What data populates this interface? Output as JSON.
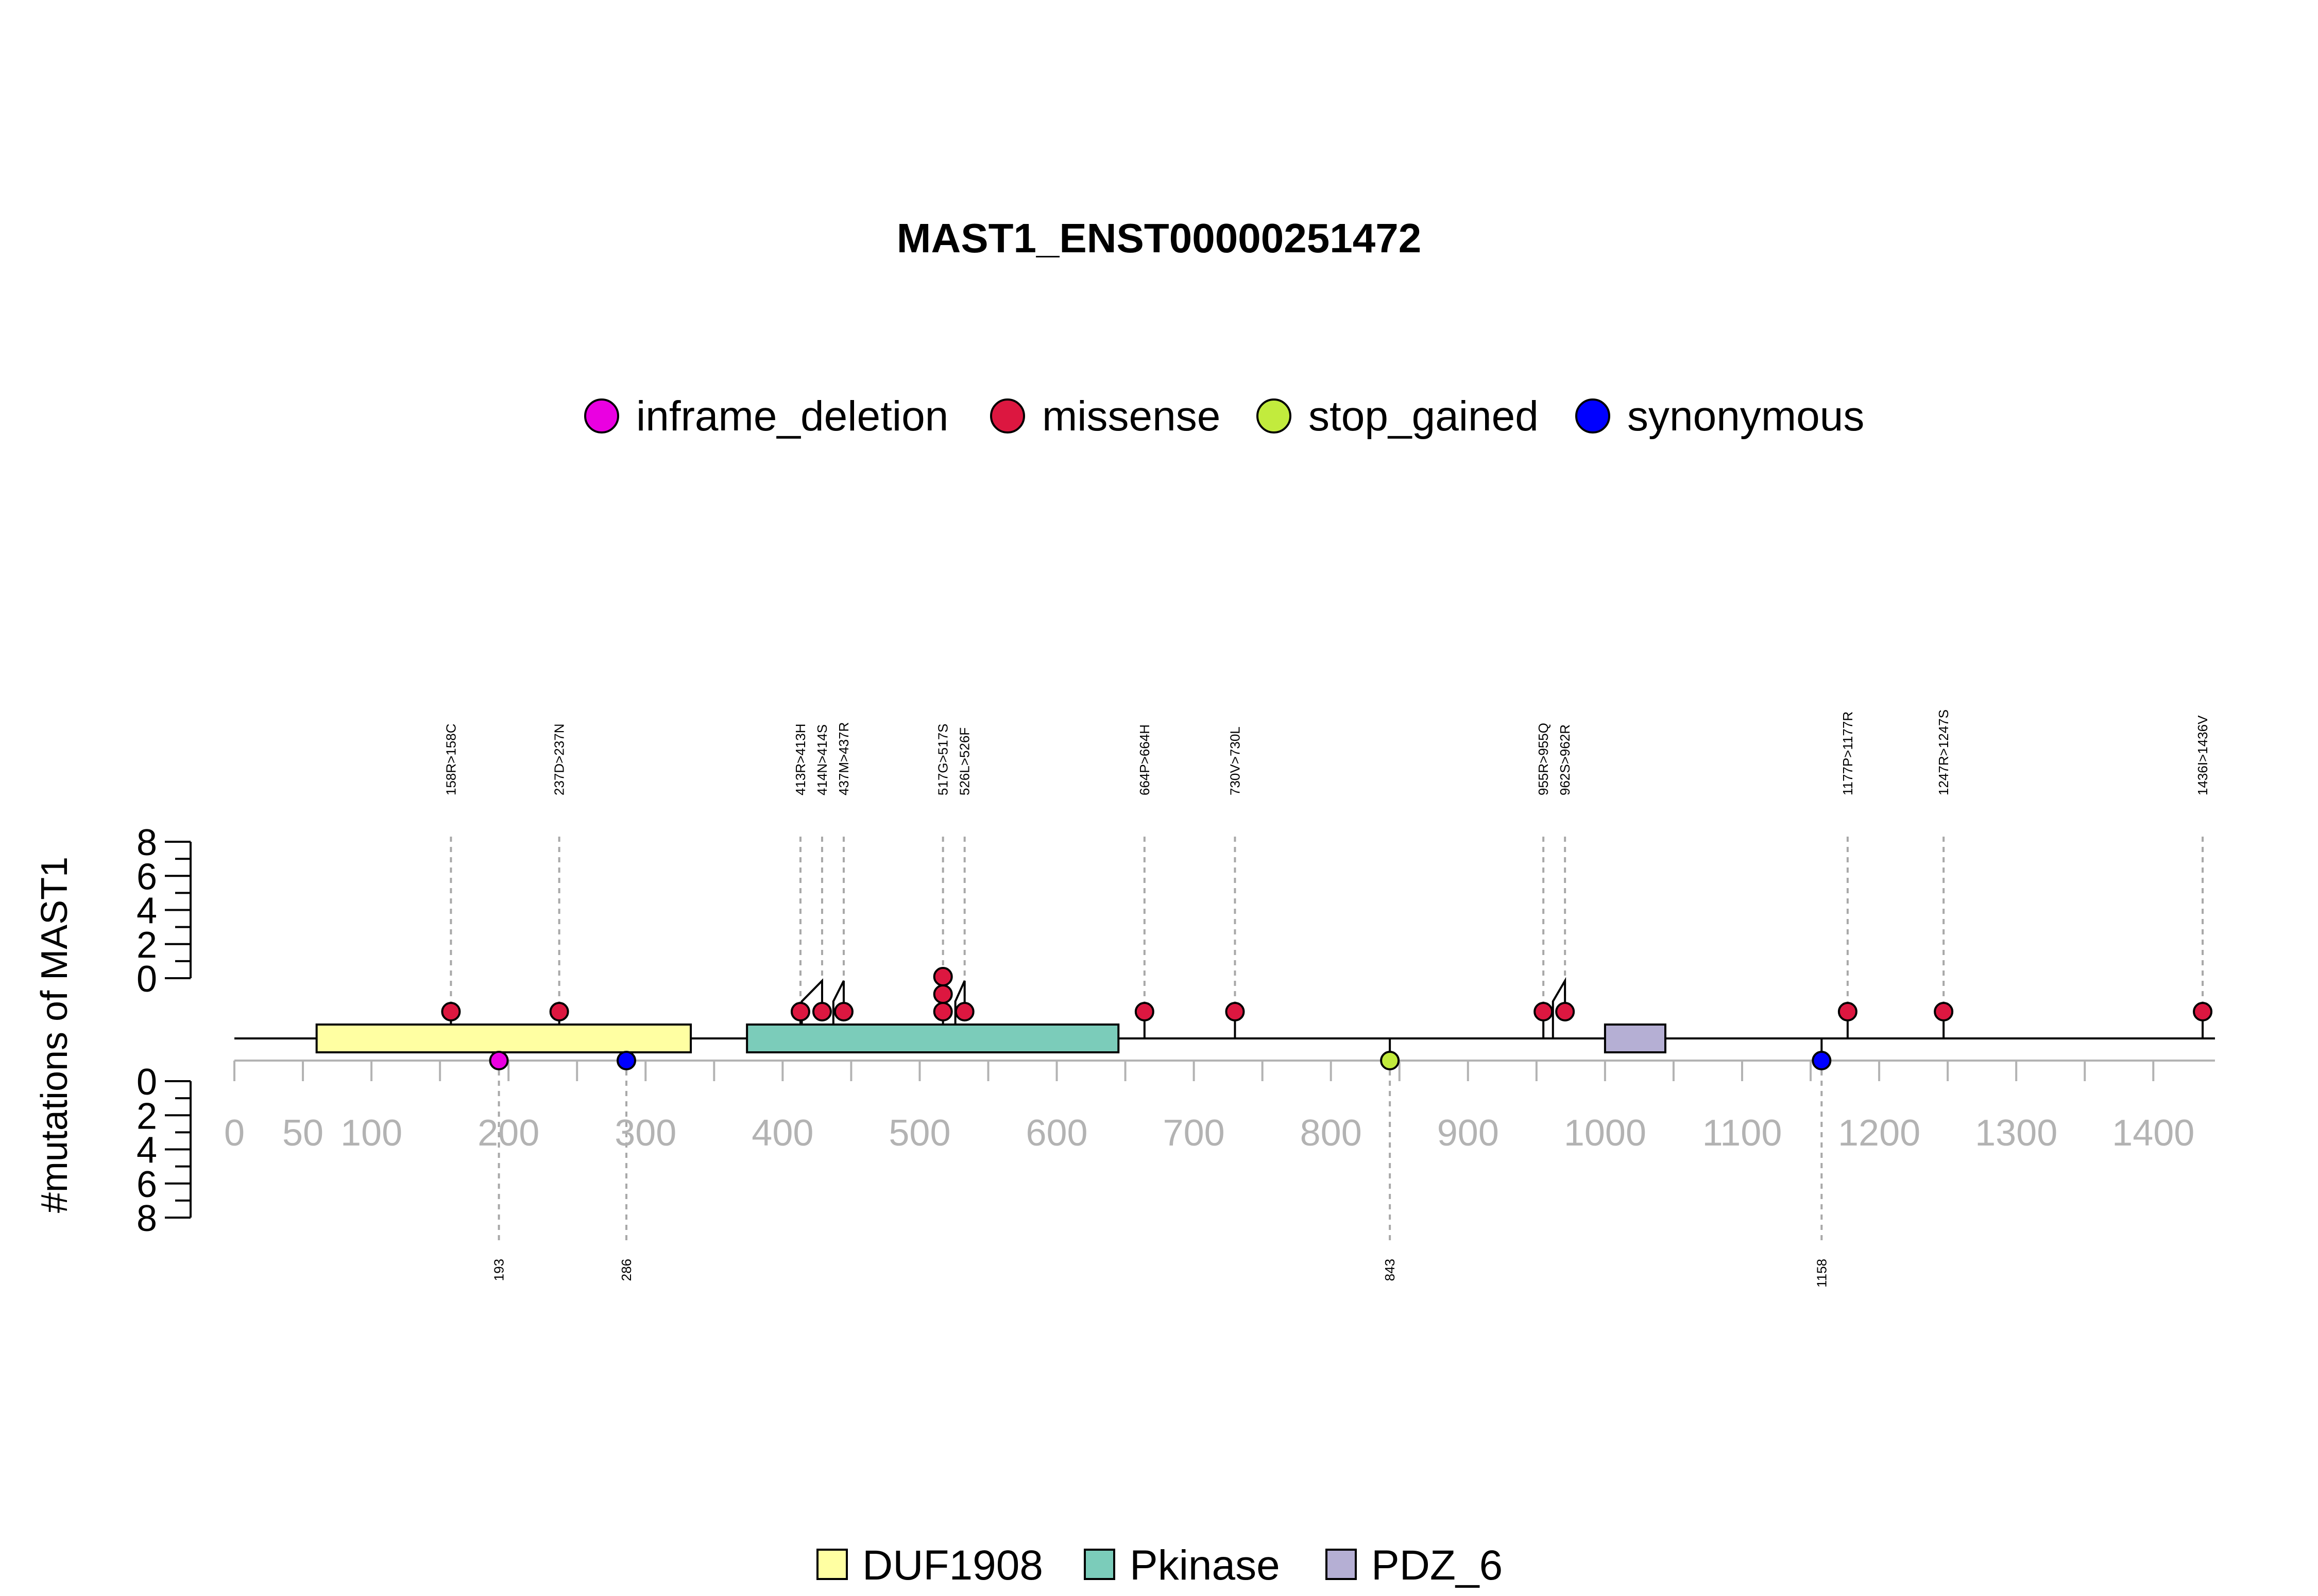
{
  "chart_data": {
    "type": "lollipop",
    "title": "MAST1_ENST00000251472",
    "ylabel": "#mutations of MAST1",
    "ylim_upper": [
      0,
      8
    ],
    "ylim_lower": [
      0,
      8
    ],
    "yticks": [
      "0",
      "2",
      "4",
      "6",
      "8"
    ],
    "xticks": [
      0,
      50,
      100,
      200,
      300,
      400,
      500,
      600,
      700,
      800,
      900,
      1000,
      1100,
      1200,
      1300,
      1400
    ],
    "xlim": [
      0,
      1445
    ],
    "protein_length": 1445,
    "colors": {
      "inframe_deletion": "#EA00E1",
      "missense": "#DC1740",
      "stop_gained": "#C2EB3D",
      "synonymous": "#0000FF",
      "DUF1908": "#FFFFA2",
      "Pkinase": "#7BCCBA",
      "PDZ_6": "#B5AFD4",
      "tick_gray": "#B3B3B3"
    },
    "mutation_legend": [
      {
        "label": "inframe_deletion",
        "color": "#EA00E1"
      },
      {
        "label": "missense",
        "color": "#DC1740"
      },
      {
        "label": "stop_gained",
        "color": "#C2EB3D"
      },
      {
        "label": "synonymous",
        "color": "#0000FF"
      }
    ],
    "domain_legend": [
      {
        "label": "DUF1908",
        "color": "#FFFFA2"
      },
      {
        "label": "Pkinase",
        "color": "#7BCCBA"
      },
      {
        "label": "PDZ_6",
        "color": "#B5AFD4"
      }
    ],
    "domains": [
      {
        "name": "DUF1908",
        "start": 60,
        "end": 333
      },
      {
        "name": "Pkinase",
        "start": 374,
        "end": 645
      },
      {
        "name": "PDZ_6",
        "start": 1000,
        "end": 1044
      }
    ],
    "upper_mutations": [
      {
        "label": "158R>158C",
        "pos": 158,
        "type": "missense",
        "count": 1
      },
      {
        "label": "237D>237N",
        "pos": 237,
        "type": "missense",
        "count": 1
      },
      {
        "label": "413R>413H",
        "pos": 413,
        "type": "missense",
        "count": 1
      },
      {
        "label": "414N>414S",
        "pos": 414,
        "type": "missense",
        "count": 1
      },
      {
        "label": "437M>437R",
        "pos": 437,
        "type": "missense",
        "count": 1
      },
      {
        "label": "517G>517S",
        "pos": 517,
        "type": "missense",
        "count": 3
      },
      {
        "label": "526L>526F",
        "pos": 526,
        "type": "missense",
        "count": 1
      },
      {
        "label": "664P>664H",
        "pos": 664,
        "type": "missense",
        "count": 1
      },
      {
        "label": "730V>730L",
        "pos": 730,
        "type": "missense",
        "count": 1
      },
      {
        "label": "955R>955Q",
        "pos": 955,
        "type": "missense",
        "count": 1
      },
      {
        "label": "962S>962R",
        "pos": 962,
        "type": "missense",
        "count": 1
      },
      {
        "label": "1177P>1177R",
        "pos": 1177,
        "type": "missense",
        "count": 1
      },
      {
        "label": "1247R>1247S",
        "pos": 1247,
        "type": "missense",
        "count": 1
      },
      {
        "label": "1436I>1436V",
        "pos": 1436,
        "type": "missense",
        "count": 1
      }
    ],
    "lower_mutations": [
      {
        "label": "193",
        "pos": 193,
        "type": "inframe_deletion",
        "count": 1
      },
      {
        "label": "286",
        "pos": 286,
        "type": "synonymous",
        "count": 1
      },
      {
        "label": "843",
        "pos": 843,
        "type": "stop_gained",
        "count": 1
      },
      {
        "label": "1158",
        "pos": 1158,
        "type": "synonymous",
        "count": 1
      }
    ]
  }
}
